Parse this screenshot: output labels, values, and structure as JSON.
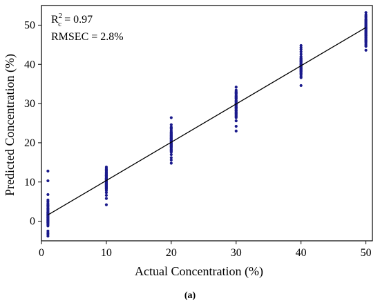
{
  "chart_data": {
    "type": "scatter",
    "xlabel": "Actual Concentration (%)",
    "ylabel": "Predicted Concentration (%)",
    "xlim": [
      0,
      51
    ],
    "ylim": [
      -5,
      55
    ],
    "xticks": [
      0,
      10,
      20,
      30,
      40,
      50
    ],
    "yticks": [
      0,
      10,
      20,
      30,
      40,
      50
    ],
    "grid": false,
    "point_color": "#1a1a8c",
    "line_color": "#000000",
    "annotations": {
      "r2_base": "R",
      "r2_sup": "2",
      "r2_sub": "c",
      "r2_value": " = 0.97",
      "rmsec": "RMSEC = 2.8%"
    },
    "caption": "(a)",
    "series": [
      {
        "x": [
          1,
          1,
          1,
          1,
          1,
          1,
          1,
          1,
          1,
          1,
          1,
          1,
          1,
          1,
          1,
          1,
          1,
          1,
          1,
          1,
          1,
          1,
          1,
          1,
          1,
          1,
          1,
          1,
          1,
          1,
          1,
          1,
          1,
          1,
          1,
          1,
          1,
          1,
          1,
          1,
          10,
          10,
          10,
          10,
          10,
          10,
          10,
          10,
          10,
          10,
          10,
          10,
          10,
          10,
          10,
          10,
          10,
          10,
          10,
          10,
          10,
          10,
          10,
          10,
          10,
          10,
          10,
          10,
          10,
          10,
          10,
          10,
          10,
          10,
          10,
          10,
          10,
          10,
          10,
          10,
          10,
          10,
          10,
          10,
          10,
          10,
          10,
          20,
          20,
          20,
          20,
          20,
          20,
          20,
          20,
          20,
          20,
          20,
          20,
          20,
          20,
          20,
          20,
          20,
          20,
          20,
          20,
          20,
          20,
          20,
          20,
          20,
          20,
          20,
          20,
          20,
          20,
          20,
          20,
          20,
          20,
          20,
          20,
          20,
          20,
          20,
          20,
          20,
          20,
          30,
          30,
          30,
          30,
          30,
          30,
          30,
          30,
          30,
          30,
          30,
          30,
          30,
          30,
          30,
          30,
          30,
          30,
          30,
          30,
          30,
          30,
          30,
          30,
          30,
          30,
          30,
          30,
          30,
          30,
          30,
          30,
          30,
          30,
          30,
          30,
          30,
          40,
          40,
          40,
          40,
          40,
          40,
          40,
          40,
          40,
          40,
          40,
          40,
          40,
          40,
          40,
          40,
          40,
          40,
          40,
          40,
          40,
          40,
          40,
          40,
          40,
          40,
          40,
          40,
          40,
          40,
          40,
          40,
          40,
          50,
          50,
          50,
          50,
          50,
          50,
          50,
          50,
          50,
          50,
          50,
          50,
          50,
          50,
          50,
          50,
          50,
          50,
          50,
          50,
          50,
          50,
          50,
          50,
          50,
          50,
          50,
          50,
          50,
          50,
          50,
          50,
          50,
          50,
          50,
          50,
          50,
          50,
          50,
          50,
          50,
          50,
          50
        ],
        "y": [
          12.8,
          10.3,
          6.8,
          5.4,
          5.0,
          4.6,
          4.2,
          3.8,
          3.4,
          3.0,
          2.7,
          2.4,
          2.1,
          1.8,
          1.5,
          1.2,
          0.9,
          0.6,
          0.3,
          0.0,
          -0.3,
          -0.6,
          -0.9,
          -1.2,
          -2.5,
          -3.0,
          -3.3,
          -3.8,
          0.2,
          0.5,
          0.8,
          1.1,
          1.4,
          1.7,
          2.0,
          2.3,
          -0.4,
          -0.1,
          3.2,
          4.0,
          13.8,
          13.4,
          13.0,
          12.6,
          12.2,
          11.8,
          11.5,
          11.2,
          10.9,
          10.6,
          10.3,
          10.0,
          9.7,
          9.4,
          9.1,
          8.8,
          8.5,
          8.2,
          7.8,
          7.3,
          6.6,
          5.8,
          4.2,
          12.9,
          11.7,
          10.8,
          10.1,
          9.6,
          9.0,
          8.6,
          12.4,
          11.0,
          10.4,
          9.9,
          9.2,
          11.3,
          10.7,
          10.2,
          9.5,
          8.9,
          8.3,
          12.0,
          11.6,
          10.5,
          13.2,
          9.8,
          9.3,
          26.4,
          24.6,
          24.0,
          23.6,
          23.2,
          22.8,
          22.4,
          22.0,
          21.7,
          21.4,
          21.1,
          20.8,
          20.5,
          20.2,
          19.9,
          19.6,
          19.3,
          19.0,
          18.7,
          18.4,
          18.0,
          17.6,
          17.0,
          16.2,
          15.6,
          14.8,
          22.6,
          21.9,
          21.2,
          20.6,
          20.0,
          19.4,
          18.9,
          18.2,
          23.8,
          21.5,
          20.3,
          19.7,
          20.9,
          19.1,
          17.8,
          22.2,
          34.2,
          33.4,
          32.8,
          32.4,
          32.0,
          31.6,
          31.2,
          30.8,
          30.5,
          30.2,
          29.9,
          29.6,
          29.3,
          29.0,
          28.7,
          28.4,
          28.1,
          27.8,
          27.4,
          26.9,
          26.4,
          25.6,
          24.2,
          23.0,
          31.8,
          30.6,
          29.7,
          28.9,
          28.2,
          27.2,
          32.6,
          31.4,
          30.0,
          29.1,
          27.6,
          26.7,
          33.0,
          44.8,
          44.3,
          43.8,
          42.6,
          41.6,
          41.2,
          40.8,
          40.5,
          40.2,
          39.9,
          39.6,
          39.3,
          39.0,
          38.7,
          38.4,
          38.1,
          37.8,
          37.4,
          37.0,
          36.6,
          34.6,
          42.0,
          41.0,
          40.0,
          39.5,
          38.9,
          38.2,
          37.6,
          43.2,
          40.7,
          39.1,
          38.5,
          41.4,
          53.2,
          52.6,
          52.0,
          51.6,
          51.2,
          50.8,
          50.4,
          50.0,
          49.7,
          49.4,
          49.1,
          48.8,
          48.5,
          48.2,
          47.9,
          47.6,
          47.3,
          47.0,
          46.7,
          46.4,
          46.0,
          45.6,
          45.2,
          44.6,
          43.6,
          51.4,
          50.6,
          49.9,
          49.2,
          48.6,
          48.0,
          47.4,
          46.9,
          46.2,
          45.8,
          52.3,
          50.2,
          49.5,
          48.4,
          47.7,
          51.0,
          49.0,
          44.9
        ]
      }
    ],
    "fit_line": {
      "x": [
        1,
        50
      ],
      "y": [
        1.6,
        49.4
      ]
    }
  }
}
